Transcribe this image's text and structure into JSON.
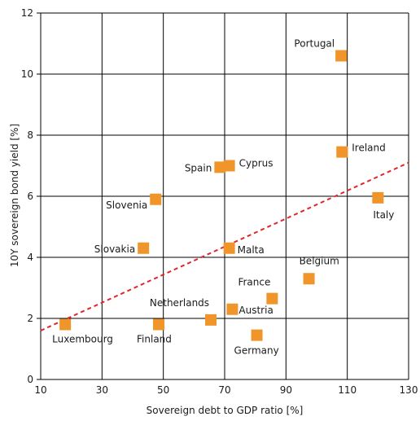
{
  "chart_data": {
    "type": "scatter",
    "title": "",
    "xlabel": "Sovereign debt to GDP ratio [%]",
    "ylabel": "10Y sovereign bond yield [%]",
    "xlim": [
      10,
      130
    ],
    "ylim": [
      0,
      12
    ],
    "xticks": [
      10,
      30,
      50,
      70,
      90,
      110,
      130
    ],
    "yticks": [
      0,
      2,
      4,
      6,
      8,
      10,
      12
    ],
    "grid": true,
    "colors": {
      "marker": "#f0952a",
      "trend": "#e0262a",
      "grid": "#000000",
      "text": "#1a1a1a"
    },
    "points": [
      {
        "label": "Portugal",
        "x": 108,
        "y": 10.6
      },
      {
        "label": "Ireland",
        "x": 108.3,
        "y": 7.45
      },
      {
        "label": "Cyprus",
        "x": 71.5,
        "y": 7.0
      },
      {
        "label": "Spain",
        "x": 68.5,
        "y": 6.95
      },
      {
        "label": "Slovenia",
        "x": 47.5,
        "y": 5.9
      },
      {
        "label": "Italy",
        "x": 120,
        "y": 5.95
      },
      {
        "label": "Slovakia",
        "x": 43.5,
        "y": 4.3
      },
      {
        "label": "Malta",
        "x": 71.5,
        "y": 4.3
      },
      {
        "label": "Belgium",
        "x": 97.5,
        "y": 3.3
      },
      {
        "label": "France",
        "x": 85.5,
        "y": 2.65
      },
      {
        "label": "Austria",
        "x": 72.5,
        "y": 2.3
      },
      {
        "label": "Netherlands",
        "x": 65.5,
        "y": 1.95
      },
      {
        "label": "Germany",
        "x": 80.5,
        "y": 1.45
      },
      {
        "label": "Finland",
        "x": 48.5,
        "y": 1.8
      },
      {
        "label": "Luxembourg",
        "x": 18,
        "y": 1.8
      }
    ],
    "trendline": {
      "style": "dashed",
      "x": [
        10,
        130
      ],
      "y": [
        1.6,
        7.1
      ]
    }
  }
}
